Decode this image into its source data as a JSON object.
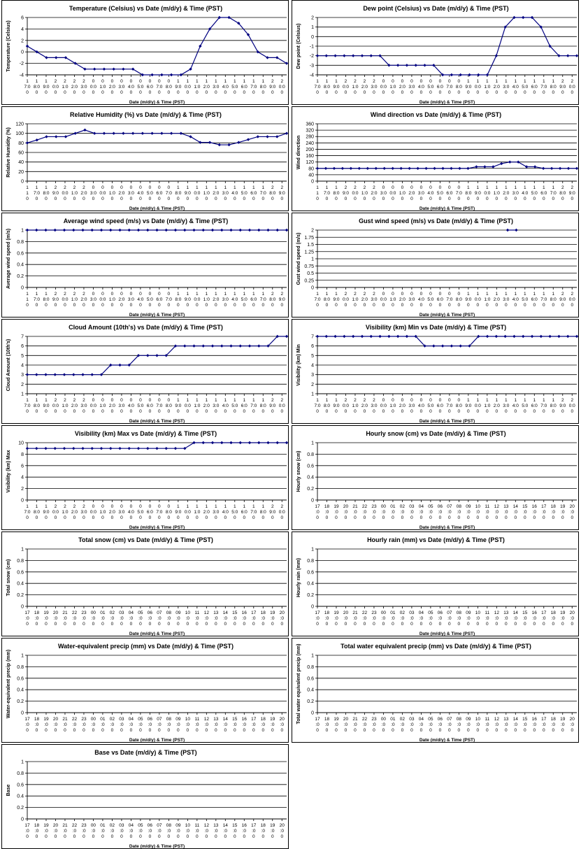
{
  "chart_data": [
    {
      "type": "line",
      "title": "Temperature (Celsius) vs Date (m/d/y) & Time (PST)",
      "ylabel": "Temperature (Celsius)",
      "xlabel": "Date (m/d/y) & Time (PST)",
      "ylim": [
        -4,
        6
      ],
      "yticks": [
        "-4",
        "-2",
        "0",
        "2",
        "4",
        "6"
      ],
      "xtick_style": "split_a",
      "series": [
        {
          "values": [
            1,
            0,
            -1,
            -1,
            -1,
            -2,
            -3,
            -3,
            -3,
            -3,
            -3,
            -3,
            -4,
            -4,
            -4,
            -4,
            -4,
            -3,
            1,
            4,
            6,
            6,
            5,
            3,
            0,
            -1,
            -1,
            -2
          ]
        }
      ]
    },
    {
      "type": "line",
      "title": "Dew point (Celsius) vs Date (m/d/y) & Time (PST)",
      "ylabel": "Dew point (Celsius)",
      "xlabel": "Date (m/d/y) & Time (PST)",
      "ylim": [
        -4,
        2
      ],
      "yticks": [
        "-4",
        "-3",
        "-2",
        "-1",
        "0",
        "1",
        "2"
      ],
      "xtick_style": "split_a",
      "series": [
        {
          "values": [
            -2,
            -2,
            -2,
            -2,
            -2,
            -2,
            -2,
            -2,
            -3,
            -3,
            -3,
            -3,
            -3,
            -3,
            -4,
            -4,
            -4,
            -4,
            -4,
            -4,
            -2,
            1,
            2,
            2,
            2,
            1,
            -1,
            -2,
            -2,
            -2
          ]
        }
      ]
    },
    {
      "type": "line",
      "title": "Relative Humidity (%) vs Date (m/d/y) & Time (PST)",
      "ylabel": "Relative Humidity (%)",
      "xlabel": "Date (m/d/y) & Time (PST)",
      "ylim": [
        0,
        120
      ],
      "yticks": [
        "0",
        "20",
        "40",
        "60",
        "80",
        "100",
        "120"
      ],
      "xtick_style": "split_b",
      "series": [
        {
          "values": [
            80,
            86,
            93,
            93,
            93,
            100,
            107,
            100,
            100,
            100,
            100,
            100,
            100,
            100,
            100,
            100,
            100,
            93,
            81,
            81,
            76,
            76,
            81,
            87,
            93,
            93,
            93,
            100
          ]
        }
      ]
    },
    {
      "type": "line",
      "title": "Wind direction vs Date (m/d/y) & Time (PST)",
      "ylabel": "Wind direction",
      "xlabel": "Date (m/d/y) & Time (PST)",
      "ylim": [
        0,
        360
      ],
      "yticks": [
        "0",
        "40",
        "80",
        "120",
        "160",
        "200",
        "240",
        "280",
        "320",
        "360"
      ],
      "xtick_style": "split_b",
      "series": [
        {
          "values": [
            80,
            80,
            80,
            80,
            80,
            80,
            80,
            80,
            80,
            80,
            80,
            80,
            80,
            80,
            80,
            80,
            80,
            80,
            80,
            90,
            90,
            90,
            110,
            120,
            120,
            90,
            90,
            80,
            80,
            80,
            80,
            80
          ]
        }
      ]
    },
    {
      "type": "line",
      "title": "Average wind speed (m/s) vs Date (m/d/y) & Time (PST)",
      "ylabel": "Average wind speed (m/s)",
      "xlabel": "Date (m/d/y) & Time (PST)",
      "ylim": [
        0,
        1
      ],
      "yticks": [
        "0",
        "0.2",
        "0.4",
        "0.6",
        "0.8",
        "1"
      ],
      "xtick_style": "split_b",
      "series": [
        {
          "values": [
            1,
            1,
            1,
            1,
            1,
            1,
            1,
            1,
            1,
            1,
            1,
            1,
            1,
            1,
            1,
            1,
            1,
            1,
            1,
            1,
            1,
            1,
            1,
            1,
            1,
            1,
            1,
            1,
            1
          ]
        }
      ]
    },
    {
      "type": "line",
      "title": "Gust wind speed (m/s) vs Date (m/d/y) & Time (PST)",
      "ylabel": "Gust wind speed (m/s)",
      "xlabel": "Date (m/d/y) & Time (PST)",
      "ylim": [
        0,
        2
      ],
      "yticks": [
        "0",
        "0.25",
        "0.5",
        "0.75",
        "1",
        "1.25",
        "1.5",
        "1.75",
        "2"
      ],
      "xtick_style": "split_a",
      "series": [
        {
          "values": [
            null,
            null,
            null,
            null,
            null,
            null,
            null,
            null,
            null,
            null,
            null,
            null,
            null,
            null,
            null,
            null,
            null,
            null,
            null,
            null,
            null,
            null,
            2,
            2,
            null,
            null,
            null,
            null,
            null,
            null,
            null
          ]
        }
      ]
    },
    {
      "type": "line",
      "title": "Cloud Amount (10th's) vs Date (m/d/y) & Time (PST)",
      "ylabel": "Cloud Amount (10th's)",
      "xlabel": "Date (m/d/y) & Time (PST)",
      "ylim": [
        1,
        7
      ],
      "yticks": [
        "1",
        "2",
        "3",
        "4",
        "5",
        "6",
        "7"
      ],
      "xtick_style": "split_a",
      "series": [
        {
          "values": [
            3,
            3,
            3,
            3,
            3,
            3,
            3,
            3,
            3,
            4,
            4,
            4,
            5,
            5,
            5,
            5,
            6,
            6,
            6,
            6,
            6,
            6,
            6,
            6,
            6,
            6,
            6,
            7,
            7
          ]
        }
      ]
    },
    {
      "type": "line",
      "title": "Visibility (km) Min vs Date (m/d/y) & Time (PST)",
      "ylabel": "Visibility (km) Min",
      "xlabel": "Date (m/d/y) & Time (PST)",
      "ylim": [
        1,
        7
      ],
      "yticks": [
        "1",
        "2",
        "3",
        "4",
        "5",
        "6",
        "7"
      ],
      "xtick_style": "split_a",
      "series": [
        {
          "values": [
            7,
            7,
            7,
            7,
            7,
            7,
            7,
            7,
            7,
            7,
            7,
            7,
            6,
            6,
            6,
            6,
            6,
            6,
            7,
            7,
            7,
            7,
            7,
            7,
            7,
            7,
            7,
            7,
            7,
            7
          ]
        }
      ]
    },
    {
      "type": "line",
      "title": "Visibility (km) Max vs Date (m/d/y) & Time (PST)",
      "ylabel": "Visibility (km) Max",
      "xlabel": "Date (m/d/y) & Time (PST)",
      "ylim": [
        0,
        10
      ],
      "yticks": [
        "0",
        "2",
        "4",
        "6",
        "8",
        "10"
      ],
      "xtick_style": "split_a",
      "series": [
        {
          "values": [
            9,
            9,
            9,
            9,
            9,
            9,
            9,
            9,
            9,
            9,
            9,
            9,
            9,
            9,
            9,
            9,
            9,
            9,
            10,
            10,
            10,
            10,
            10,
            10,
            10,
            10,
            10,
            10,
            10
          ]
        }
      ]
    },
    {
      "type": "line",
      "title": "Hourly snow (cm) vs Date (m/d/y) & Time (PST)",
      "ylabel": "Hourly snow (cm)",
      "xlabel": "Date (m/d/y) & Time (PST)",
      "ylim": [
        0,
        1
      ],
      "yticks": [
        "0",
        "0.2",
        "0.4",
        "0.6",
        "0.8",
        "1"
      ],
      "xtick_style": "hours",
      "series": []
    },
    {
      "type": "line",
      "title": "Total snow (cm) vs Date (m/d/y) & Time (PST)",
      "ylabel": "Total snow (cm)",
      "xlabel": "Date (m/d/y) & Time (PST)",
      "ylim": [
        0,
        1
      ],
      "yticks": [
        "0",
        "0.2",
        "0.4",
        "0.6",
        "0.8",
        "1"
      ],
      "xtick_style": "hours",
      "series": []
    },
    {
      "type": "line",
      "title": "Hourly rain (mm) vs Date (m/d/y) & Time (PST)",
      "ylabel": "Hourly rain (mm)",
      "xlabel": "Date (m/d/y) & Time (PST)",
      "ylim": [
        0,
        1
      ],
      "yticks": [
        "0",
        "0.2",
        "0.4",
        "0.6",
        "0.8",
        "1"
      ],
      "xtick_style": "hours",
      "series": []
    },
    {
      "type": "line",
      "title": "Water-equivalent precip (mm) vs Date (m/d/y) & Time (PST)",
      "ylabel": "Water-equivalent precip (mm)",
      "xlabel": "Date (m/d/y) & Time (PST)",
      "ylim": [
        0,
        1
      ],
      "yticks": [
        "0",
        "0.2",
        "0.4",
        "0.6",
        "0.8",
        "1"
      ],
      "xtick_style": "hours",
      "series": []
    },
    {
      "type": "line",
      "title": "Total water equivalent precip (mm) vs Date (m/d/y) & Time (PST)",
      "ylabel": "Total water equivalent precip (mm)",
      "xlabel": "Date (m/d/y) & Time (PST)",
      "ylim": [
        0,
        1
      ],
      "yticks": [
        "0",
        "0.2",
        "0.4",
        "0.6",
        "0.8",
        "1"
      ],
      "xtick_style": "hours",
      "series": []
    },
    {
      "type": "line",
      "title": "Base vs Date (m/d/y) & Time (PST)",
      "ylabel": "Base",
      "xlabel": "Date (m/d/y) & Time (PST)",
      "ylim": [
        0,
        1
      ],
      "yticks": [
        "0",
        "0.2",
        "0.4",
        "0.6",
        "0.8",
        "1"
      ],
      "xtick_style": "hours",
      "series": []
    }
  ],
  "xtick_sets": {
    "split_a": [
      [
        "1",
        "1",
        "1",
        "2",
        "2",
        "2",
        "2",
        "0",
        "0",
        "0",
        "0",
        "0",
        "0",
        "0",
        "0",
        "0",
        "1",
        "1",
        "1",
        "1",
        "1",
        "1",
        "1",
        "1",
        "1",
        "1",
        "2",
        "2"
      ],
      [
        "7:0",
        "8:0",
        "9:0",
        "0:0",
        "1:0",
        "2:0",
        "3:0",
        "0:0",
        "1:0",
        "2:0",
        "3:0",
        "4:0",
        "5:0",
        "6:0",
        "7:0",
        "8:0",
        "9:0",
        "0:0",
        "1:0",
        "2:0",
        "3:0",
        "4:0",
        "5:0",
        "6:0",
        "7:0",
        "8:0",
        "9:0",
        "0:0"
      ],
      [
        "0",
        "0",
        "0",
        "0",
        "0",
        "0",
        "0",
        "0",
        "0",
        "0",
        "0",
        "0",
        "0",
        "0",
        "0",
        "0",
        "0",
        "0",
        "0",
        "0",
        "0",
        "0",
        "0",
        "0",
        "0",
        "0",
        "0",
        "0"
      ]
    ],
    "split_b": [
      [
        "1",
        "1",
        "1",
        "2",
        "2",
        "2",
        "2",
        "0",
        "0",
        "0",
        "0",
        "0",
        "0",
        "0",
        "0",
        "0",
        "1",
        "1",
        "1",
        "1",
        "1",
        "1",
        "1",
        "1",
        "1",
        "1",
        "2",
        "2"
      ],
      [
        "1",
        "7:0",
        "8:0",
        "9:0",
        "0:0",
        "1:0",
        "2:0",
        "3:0",
        "0:0",
        "1:0",
        "2:0",
        "3:0",
        "4:0",
        "5:0",
        "6:0",
        "7:0",
        "8:0",
        "9:0",
        "0:0",
        "1:0",
        "2:0",
        "3:0",
        "4:0",
        "5:0",
        "6:0",
        "7:0",
        "8:0",
        "9:0"
      ],
      [
        "0",
        "0",
        "0",
        "0",
        "0",
        "0",
        "0",
        "0",
        "0",
        "0",
        "0",
        "0",
        "0",
        "0",
        "0",
        "0",
        "0",
        "0",
        "0",
        "0",
        "0",
        "0",
        "0",
        "0",
        "0",
        "0",
        "0",
        "0"
      ]
    ],
    "hours": [
      [
        "17",
        "18",
        "19",
        "20",
        "21",
        "22",
        "23",
        "00",
        "01",
        "02",
        "03",
        "04",
        "05",
        "06",
        "07",
        "08",
        "09",
        "10",
        "11",
        "12",
        "13",
        "14",
        "15",
        "16",
        "17",
        "18",
        "19",
        "20"
      ],
      [
        ":0",
        ":0",
        ":0",
        ":0",
        ":0",
        ":0",
        ":0",
        ":0",
        ":0",
        ":0",
        ":0",
        ":0",
        ":0",
        ":0",
        ":0",
        ":0",
        ":0",
        ":0",
        ":0",
        ":0",
        ":0",
        ":0",
        ":0",
        ":0",
        ":0",
        ":0",
        ":0",
        ":0"
      ],
      [
        "0",
        "0",
        "0",
        "0",
        "0",
        "0",
        "0",
        "0",
        "0",
        "0",
        "0",
        "0",
        "0",
        "0",
        "0",
        "0",
        "0",
        "0",
        "0",
        "0",
        "0",
        "0",
        "0",
        "0",
        "0",
        "0",
        "0",
        "0"
      ]
    ]
  }
}
